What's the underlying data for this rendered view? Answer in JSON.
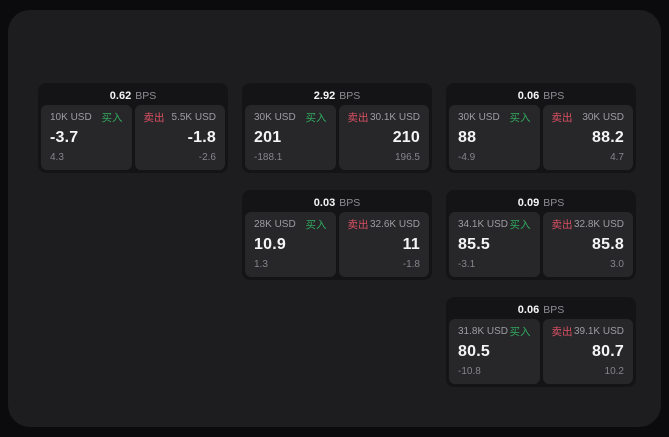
{
  "labels": {
    "buy": "买入",
    "sell": "卖出",
    "bps_unit": "BPS"
  },
  "colors": {
    "page_background": "#0b0b0d",
    "panel_background": "#1d1d1f",
    "card_background": "#141416",
    "tile_background": "#27272a",
    "buy_green": "#31a95e",
    "sell_red": "#d95063",
    "primary_text": "#f4f4f6",
    "muted_text": "#9d9da2",
    "dim_text": "#85858a"
  },
  "cards": [
    {
      "row": 1,
      "col": 1,
      "bps": "0.62",
      "buy": {
        "size": "10K USD",
        "value": "-3.7",
        "sub": "4.3"
      },
      "sell": {
        "size": "5.5K USD",
        "value": "-1.8",
        "sub": "-2.6"
      }
    },
    {
      "row": 1,
      "col": 2,
      "bps": "2.92",
      "buy": {
        "size": "30K USD",
        "value": "201",
        "sub": "-188.1"
      },
      "sell": {
        "size": "30.1K USD",
        "value": "210",
        "sub": "196.5"
      }
    },
    {
      "row": 1,
      "col": 3,
      "bps": "0.06",
      "buy": {
        "size": "30K USD",
        "value": "88",
        "sub": "-4.9"
      },
      "sell": {
        "size": "30K USD",
        "value": "88.2",
        "sub": "4.7"
      }
    },
    {
      "row": 2,
      "col": 2,
      "bps": "0.03",
      "buy": {
        "size": "28K USD",
        "value": "10.9",
        "sub": "1.3"
      },
      "sell": {
        "size": "32.6K USD",
        "value": "11",
        "sub": "-1.8"
      }
    },
    {
      "row": 2,
      "col": 3,
      "bps": "0.09",
      "buy": {
        "size": "34.1K USD",
        "value": "85.5",
        "sub": "-3.1"
      },
      "sell": {
        "size": "32.8K USD",
        "value": "85.8",
        "sub": "3.0"
      }
    },
    {
      "row": 3,
      "col": 3,
      "bps": "0.06",
      "buy": {
        "size": "31.8K USD",
        "value": "80.5",
        "sub": "-10.8"
      },
      "sell": {
        "size": "39.1K USD",
        "value": "80.7",
        "sub": "10.2"
      }
    }
  ]
}
